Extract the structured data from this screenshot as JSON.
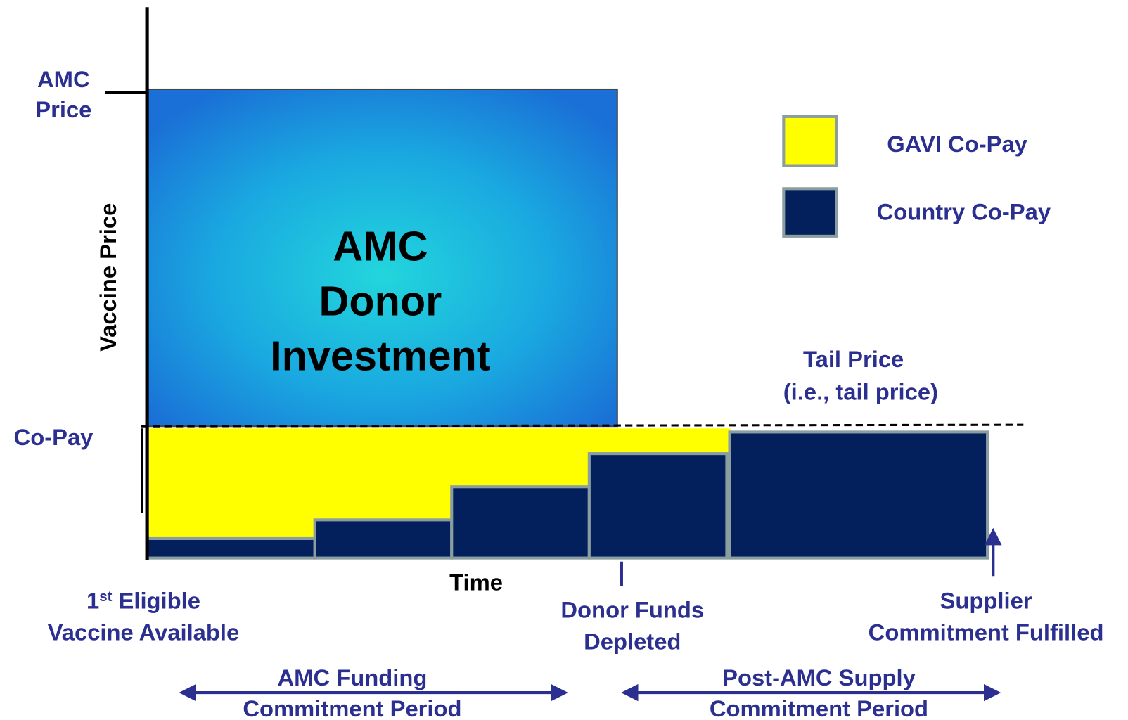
{
  "y_axis": {
    "label": "Vaccine Price",
    "top_level": [
      "AMC",
      "Price"
    ],
    "copay_level": "Co-Pay"
  },
  "x_axis": {
    "label": "Time"
  },
  "center": {
    "lines": [
      "AMC",
      "Donor",
      "Investment"
    ]
  },
  "legend": [
    {
      "label": "GAVI Co-Pay"
    },
    {
      "label": "Country Co-Pay"
    }
  ],
  "tail_price": [
    "Tail Price",
    "(i.e., tail price)"
  ],
  "milestones": {
    "first_vaccine": {
      "number": "1",
      "suffix": "st",
      "rest": " Eligible",
      "line2": "Vaccine Available"
    },
    "donor_funds": [
      "Donor Funds",
      "Depleted"
    ],
    "supplier": [
      "Supplier",
      "Commitment Fulfilled"
    ]
  },
  "periods": {
    "amc_funding": [
      "AMC Funding",
      "Commitment Period"
    ],
    "post_amc": [
      "Post-AMC Supply",
      "Commitment Period"
    ]
  }
}
